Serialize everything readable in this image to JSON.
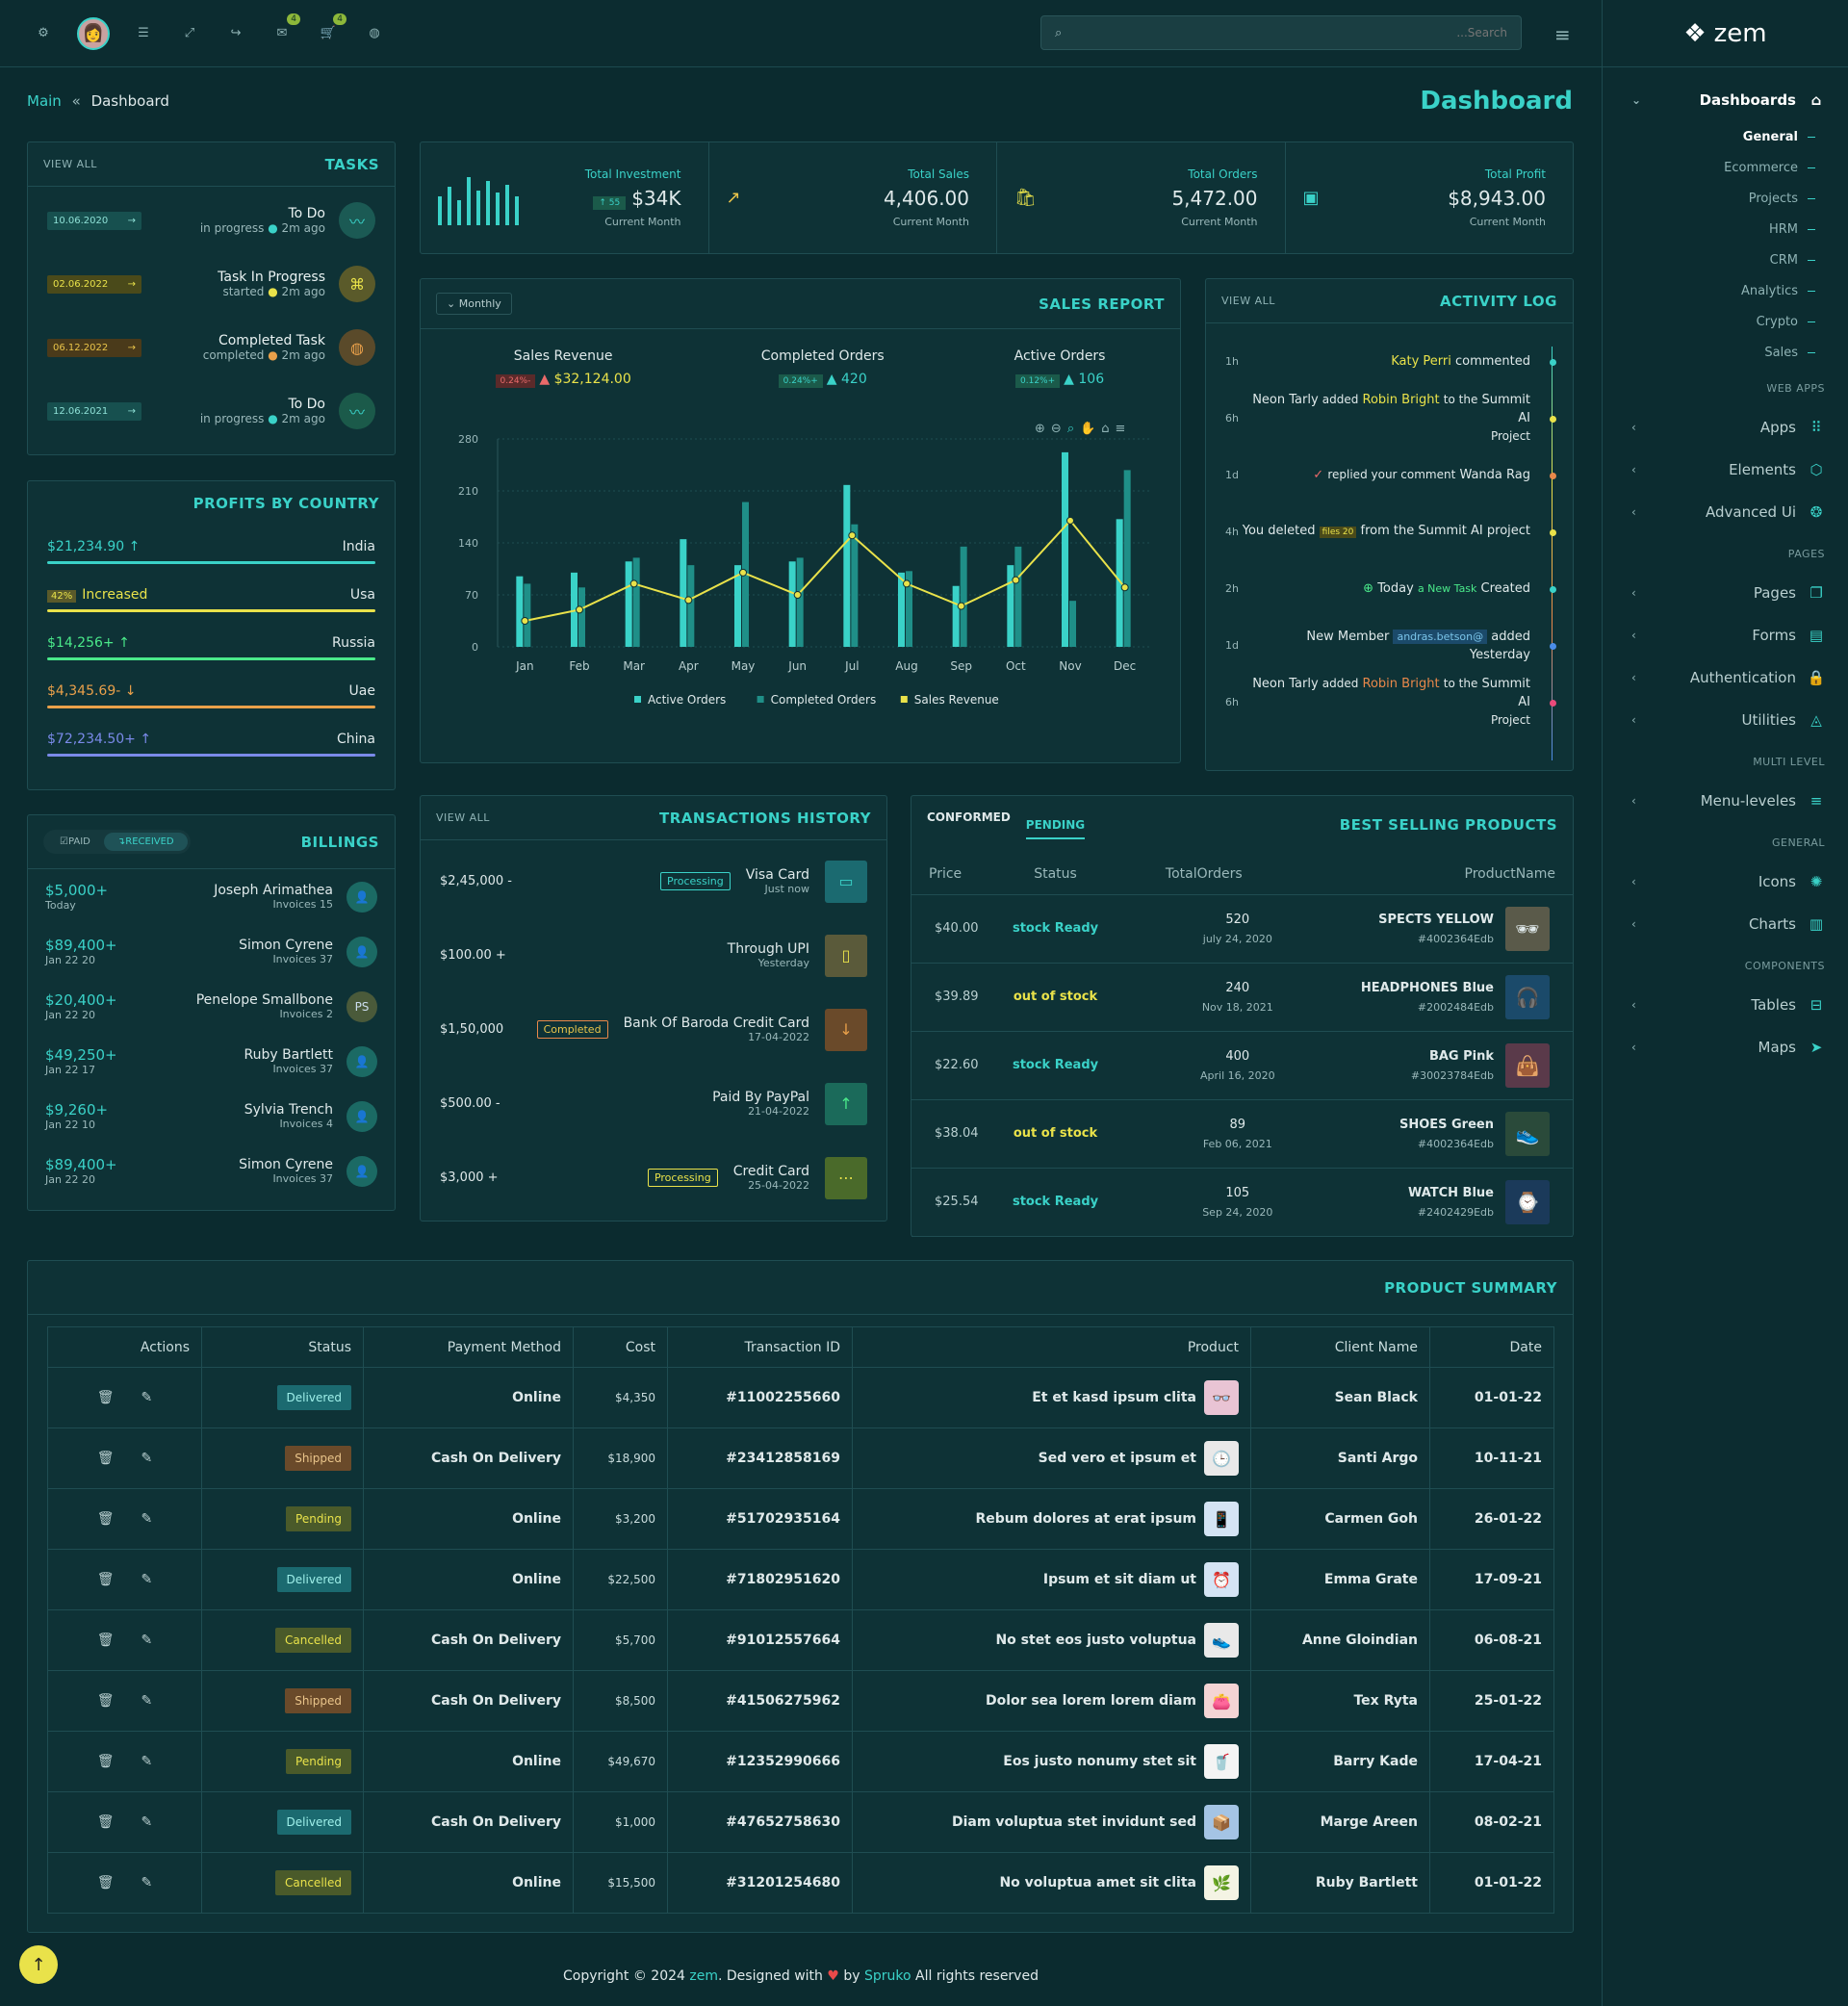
{
  "topbar": {
    "search_placeholder": "...Search",
    "badge_mail": "4",
    "badge_cart": "4"
  },
  "breadcrumb": {
    "root": "Main",
    "sep": "«",
    "current": "Dashboard"
  },
  "page_title": "Dashboard",
  "sidebar": {
    "brand": "zem",
    "dashboards": "Dashboards",
    "subs": [
      "General",
      "Ecommerce",
      "Projects",
      "HRM",
      "CRM",
      "Analytics",
      "Crypto",
      "Sales"
    ],
    "cat_webapps": "WEB APPS",
    "apps": "Apps",
    "elements": "Elements",
    "advanced": "Advanced Ui",
    "cat_pages": "PAGES",
    "pages": "Pages",
    "forms": "Forms",
    "auth": "Authentication",
    "utilities": "Utilities",
    "cat_multi": "MULTI LEVEL",
    "menu": "Menu-leveles",
    "cat_general": "GENERAL",
    "icons": "Icons",
    "charts": "Charts",
    "cat_components": "COMPONENTS",
    "tables": "Tables",
    "maps": "Maps"
  },
  "tasks": {
    "title": "TASKS",
    "view_all": "VIEW ALL",
    "items": [
      {
        "date": "10.06.2020",
        "title": "To Do",
        "status": "in progress",
        "ago": "2m ago",
        "color": "#3ad2c8"
      },
      {
        "date": "02.06.2022",
        "title": "Task In Progress",
        "status": "started",
        "ago": "2m ago",
        "color": "#e9e24a"
      },
      {
        "date": "06.12.2022",
        "title": "Completed Task",
        "status": "completed",
        "ago": "2m ago",
        "color": "#e9a04a"
      },
      {
        "date": "12.06.2021",
        "title": "To Do",
        "status": "in progress",
        "ago": "2m ago",
        "color": "#3ad2c8"
      }
    ]
  },
  "stats": [
    {
      "label": "Total Investment",
      "value": "$34K",
      "badge": "55",
      "sub": "Current Month"
    },
    {
      "label": "Total Sales",
      "value": "4,406.00",
      "sub": "Current Month"
    },
    {
      "label": "Total Orders",
      "value": "5,472.00",
      "sub": "Current Month"
    },
    {
      "label": "Total Profit",
      "value": "$8,943.00",
      "sub": "Current Month"
    }
  ],
  "sales_report": {
    "title": "SALES REPORT",
    "period": "Monthly",
    "kpis": [
      {
        "label": "Sales Revenue",
        "pct": "0.24%-",
        "value": "$32,124.00"
      },
      {
        "label": "Completed Orders",
        "pct": "0.24%+",
        "value": "420"
      },
      {
        "label": "Active Orders",
        "pct": "0.12%+",
        "value": "106"
      }
    ]
  },
  "chart_data": {
    "type": "bar",
    "categories": [
      "Jan",
      "Feb",
      "Mar",
      "Apr",
      "May",
      "Jun",
      "Jul",
      "Aug",
      "Sep",
      "Oct",
      "Nov",
      "Dec"
    ],
    "ylim": [
      0,
      280
    ],
    "yticks": [
      "0",
      "70",
      "140",
      "210",
      "280"
    ],
    "series": [
      {
        "name": "Active Orders",
        "type": "bar",
        "color": "#3ad2c8",
        "values": [
          95,
          100,
          115,
          145,
          110,
          115,
          218,
          100,
          82,
          110,
          262,
          172
        ]
      },
      {
        "name": "Completed Orders",
        "type": "bar",
        "color": "#1f8f88",
        "values": [
          85,
          80,
          120,
          110,
          195,
          120,
          165,
          102,
          135,
          135,
          62,
          238
        ]
      },
      {
        "name": "Sales Revenue",
        "type": "line",
        "color": "#e9e24a",
        "values": [
          35,
          50,
          85,
          63,
          100,
          70,
          150,
          85,
          55,
          90,
          170,
          80
        ]
      }
    ]
  },
  "activity": {
    "title": "ACTIVITY LOG",
    "view_all": "VIEW ALL",
    "items": [
      {
        "time": "1h",
        "text": "Katy Perri commented",
        "dot": "#3ad2c8"
      },
      {
        "time": "6h",
        "text": "Neon Tarly added Robin Bright to the Summit AI Project",
        "dot": "#e9e24a"
      },
      {
        "time": "1d",
        "text": "replied your comment Wanda Rag",
        "dot": "#e9884a"
      },
      {
        "time": "4h",
        "text": "You deleted files 20 from the Summit AI project",
        "dot": "#e9e24a"
      },
      {
        "time": "2h",
        "text": "Today a New Task Created",
        "dot": "#3ad2c8"
      },
      {
        "time": "1d",
        "text": "New Member andras.betson@ added Yesterday",
        "dot": "#4a8de9"
      },
      {
        "time": "6h",
        "text": "Neon Tarly added Robin Bright to the Summit AI Project",
        "dot": "#e94a7a"
      }
    ]
  },
  "profits": {
    "title": "PROFITS BY COUNTRY",
    "items": [
      {
        "value": "$21,234.90",
        "country": "India",
        "color": "#3ad2c8",
        "arrow": "↑"
      },
      {
        "value": "Increased",
        "pct": "42%",
        "country": "Usa",
        "color": "#e9e24a",
        "arrow": ""
      },
      {
        "value": "$14,256+",
        "country": "Russia",
        "color": "#4ae98a",
        "arrow": "↑"
      },
      {
        "value": "$4,345.69-",
        "country": "Uae",
        "color": "#e9a04a",
        "arrow": "↓"
      },
      {
        "value": "$72,234.50+",
        "country": "China",
        "color": "#7a8ae9",
        "arrow": "↑"
      }
    ]
  },
  "billings": {
    "title": "BILLINGS",
    "tab_paid": "PAID",
    "tab_received": "RECEIVED",
    "items": [
      {
        "amount": "$5,000+",
        "date": "Today",
        "name": "Joseph Arimathea",
        "inv": "Invoices 15",
        "av": "👤"
      },
      {
        "amount": "$89,400+",
        "date": "Jan 22 20",
        "name": "Simon Cyrene",
        "inv": "Invoices 37",
        "av": "👤"
      },
      {
        "amount": "$20,400+",
        "date": "Jan 22 20",
        "name": "Penelope Smallbone",
        "inv": "Invoices 2",
        "av": "PS"
      },
      {
        "amount": "$49,250+",
        "date": "Jan 22 17",
        "name": "Ruby Bartlett",
        "inv": "Invoices 37",
        "av": "👤"
      },
      {
        "amount": "$9,260+",
        "date": "Jan 22 10",
        "name": "Sylvia Trench",
        "inv": "Invoices 4",
        "av": "👤"
      },
      {
        "amount": "$89,400+",
        "date": "Jan 22 20",
        "name": "Simon Cyrene",
        "inv": "Invoices 37",
        "av": "👤"
      }
    ]
  },
  "transactions": {
    "title": "TRANSACTIONS HISTORY",
    "view_all": "VIEW ALL",
    "items": [
      {
        "amount": "$2,45,000 -",
        "badge": "Processing",
        "name": "Visa Card",
        "date": "Just now",
        "icon": "▭",
        "bg": "#1b6a70"
      },
      {
        "amount": "$100.00 +",
        "badge": "",
        "name": "Through UPI",
        "date": "Yesterday",
        "icon": "▯",
        "bg": "#5a5a3a"
      },
      {
        "amount": "$1,50,000",
        "badge": "Completed",
        "name": "Bank Of Baroda Credit Card",
        "date": "17-04-2022",
        "icon": "↓",
        "bg": "#6a4a2a"
      },
      {
        "amount": "$500.00 -",
        "badge": "",
        "name": "Paid By PayPal",
        "date": "21-04-2022",
        "icon": "↑",
        "bg": "#1b6a5a"
      },
      {
        "amount": "$3,000 +",
        "badge": "Processing",
        "name": "Credit Card",
        "date": "25-04-2022",
        "icon": "⋯",
        "bg": "#4a6a2a"
      }
    ]
  },
  "best_selling": {
    "title": "BEST SELLING PRODUCTS",
    "tab1": "CONFORMED",
    "tab2": "PENDING",
    "headers": [
      "Price",
      "Status",
      "TotalOrders",
      "ProductName"
    ],
    "rows": [
      {
        "price": "$40.00",
        "status": "stock Ready",
        "orders": "520",
        "date": "july 24, 2020",
        "name": "SPECTS YELLOW",
        "code": "#4002364Edb",
        "icon": "🕶"
      },
      {
        "price": "$39.89",
        "status": "out of stock",
        "orders": "240",
        "date": "Nov 18, 2021",
        "name": "HEADPHONES Blue",
        "code": "#2002484Edb",
        "icon": "🎧"
      },
      {
        "price": "$22.60",
        "status": "stock Ready",
        "orders": "400",
        "date": "April 16, 2020",
        "name": "BAG Pink",
        "code": "#30023784Edb",
        "icon": "👜"
      },
      {
        "price": "$38.04",
        "status": "out of stock",
        "orders": "89",
        "date": "Feb 06, 2021",
        "name": "SHOES Green",
        "code": "#4002364Edb",
        "icon": "👟"
      },
      {
        "price": "$25.54",
        "status": "stock Ready",
        "orders": "105",
        "date": "Sep 24, 2020",
        "name": "WATCH Blue",
        "code": "#2402429Edb",
        "icon": "⌚"
      }
    ]
  },
  "summary": {
    "title": "PRODUCT SUMMARY",
    "headers": [
      "Actions",
      "Status",
      "Payment Method",
      "Cost",
      "Transaction ID",
      "Product",
      "Client Name",
      "Date"
    ],
    "rows": [
      {
        "status": "Delivered",
        "pay": "Online",
        "cost": "$4,350",
        "tid": "#11002255660",
        "product": "Et et kasd ipsum clita",
        "client": "Sean Black",
        "date": "01-01-22",
        "icon": "👓"
      },
      {
        "status": "Shipped",
        "pay": "Cash On Delivery",
        "cost": "$18,900",
        "tid": "#23412858169",
        "product": "Sed vero et ipsum et",
        "client": "Santi Argo",
        "date": "10-11-21",
        "icon": "🕒"
      },
      {
        "status": "Pending",
        "pay": "Online",
        "cost": "$3,200",
        "tid": "#51702935164",
        "product": "Rebum dolores at erat ipsum",
        "client": "Carmen Goh",
        "date": "26-01-22",
        "icon": "📱"
      },
      {
        "status": "Delivered",
        "pay": "Online",
        "cost": "$22,500",
        "tid": "#71802951620",
        "product": "Ipsum et sit diam ut",
        "client": "Emma Grate",
        "date": "17-09-21",
        "icon": "⏰"
      },
      {
        "status": "Cancelled",
        "pay": "Cash On Delivery",
        "cost": "$5,700",
        "tid": "#91012557664",
        "product": "No stet eos justo voluptua",
        "client": "Anne Gloindian",
        "date": "06-08-21",
        "icon": "👟"
      },
      {
        "status": "Shipped",
        "pay": "Cash On Delivery",
        "cost": "$8,500",
        "tid": "#41506275962",
        "product": "Dolor sea lorem lorem diam",
        "client": "Tex Ryta",
        "date": "25-01-22",
        "icon": "👛"
      },
      {
        "status": "Pending",
        "pay": "Online",
        "cost": "$49,670",
        "tid": "#12352990666",
        "product": "Eos justo nonumy stet sit",
        "client": "Barry Kade",
        "date": "17-04-21",
        "icon": "🥤"
      },
      {
        "status": "Delivered",
        "pay": "Cash On Delivery",
        "cost": "$1,000",
        "tid": "#47652758630",
        "product": "Diam voluptua stet invidunt sed",
        "client": "Marge Areen",
        "date": "08-02-21",
        "icon": "📦"
      },
      {
        "status": "Cancelled",
        "pay": "Online",
        "cost": "$15,500",
        "tid": "#31201254680",
        "product": "No voluptua amet sit clita",
        "client": "Ruby Bartlett",
        "date": "01-01-22",
        "icon": "🌿"
      }
    ]
  },
  "footer": {
    "prefix": "Copyright © 2024",
    "brand": "zem",
    "mid": ". Designed with",
    "by": "by",
    "author": "Spruko",
    "suffix": "All rights reserved"
  }
}
